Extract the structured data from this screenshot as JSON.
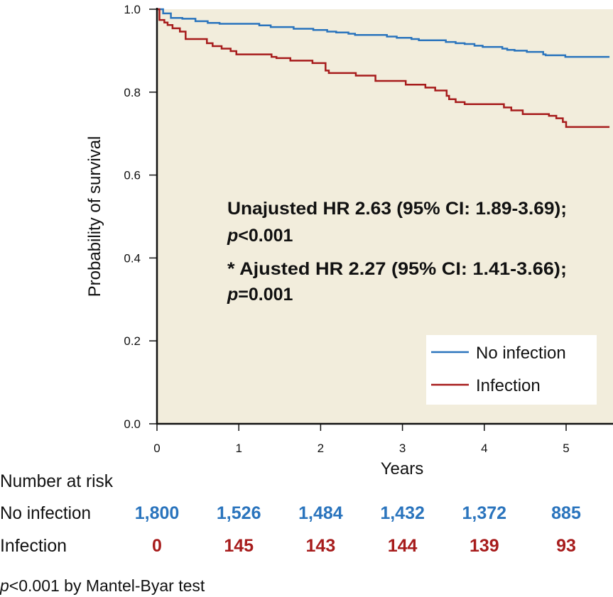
{
  "chart_data": {
    "type": "line",
    "subtype": "kaplan-meier",
    "xlabel": "Years",
    "ylabel": "Probability of survival",
    "xlim": [
      0,
      5.55
    ],
    "ylim": [
      0,
      1.0
    ],
    "x_ticks": [
      "0",
      "1",
      "2",
      "3",
      "4",
      "5"
    ],
    "y_ticks": [
      "0.0",
      "0.2",
      "0.4",
      "0.6",
      "0.8",
      "1.0"
    ],
    "grid": false,
    "legend_position": "bottom-right",
    "series": [
      {
        "name": "No infection",
        "color": "#2a74bd",
        "steps": [
          [
            0,
            1.0
          ],
          [
            0.075,
            0.99
          ],
          [
            0.17,
            0.979
          ],
          [
            0.31,
            0.977
          ],
          [
            0.47,
            0.971
          ],
          [
            0.62,
            0.967
          ],
          [
            0.765,
            0.965
          ],
          [
            1.25,
            0.961
          ],
          [
            1.39,
            0.957
          ],
          [
            1.67,
            0.953
          ],
          [
            1.91,
            0.95
          ],
          [
            2.08,
            0.946
          ],
          [
            2.19,
            0.944
          ],
          [
            2.34,
            0.941
          ],
          [
            2.42,
            0.938
          ],
          [
            2.81,
            0.934
          ],
          [
            2.93,
            0.931
          ],
          [
            3.11,
            0.928
          ],
          [
            3.2,
            0.925
          ],
          [
            3.53,
            0.921
          ],
          [
            3.65,
            0.918
          ],
          [
            3.76,
            0.916
          ],
          [
            3.88,
            0.912
          ],
          [
            3.98,
            0.909
          ],
          [
            4.22,
            0.905
          ],
          [
            4.28,
            0.902
          ],
          [
            4.37,
            0.9
          ],
          [
            4.52,
            0.897
          ],
          [
            4.72,
            0.891
          ],
          [
            4.75,
            0.889
          ],
          [
            4.99,
            0.885
          ],
          [
            5.53,
            0.885
          ]
        ]
      },
      {
        "name": "Infection",
        "color": "#a71c1c",
        "steps": [
          [
            0,
            1.0
          ],
          [
            0.03,
            0.974
          ],
          [
            0.09,
            0.968
          ],
          [
            0.13,
            0.962
          ],
          [
            0.19,
            0.954
          ],
          [
            0.28,
            0.946
          ],
          [
            0.35,
            0.928
          ],
          [
            0.61,
            0.918
          ],
          [
            0.68,
            0.911
          ],
          [
            0.79,
            0.905
          ],
          [
            0.9,
            0.899
          ],
          [
            0.97,
            0.891
          ],
          [
            1.4,
            0.885
          ],
          [
            1.46,
            0.882
          ],
          [
            1.63,
            0.876
          ],
          [
            1.9,
            0.87
          ],
          [
            2.06,
            0.852
          ],
          [
            2.1,
            0.846
          ],
          [
            2.43,
            0.84
          ],
          [
            2.67,
            0.827
          ],
          [
            3.04,
            0.818
          ],
          [
            3.28,
            0.811
          ],
          [
            3.4,
            0.804
          ],
          [
            3.54,
            0.791
          ],
          [
            3.57,
            0.783
          ],
          [
            3.65,
            0.776
          ],
          [
            3.76,
            0.771
          ],
          [
            4.24,
            0.763
          ],
          [
            4.33,
            0.756
          ],
          [
            4.47,
            0.747
          ],
          [
            4.79,
            0.743
          ],
          [
            4.88,
            0.737
          ],
          [
            4.96,
            0.728
          ],
          [
            5.0,
            0.716
          ],
          [
            5.53,
            0.716
          ]
        ]
      }
    ],
    "annotations": {
      "line1": "Unajusted HR 2.63 (95% CI: 1.89-3.69);",
      "line2_p": "p",
      "line2_rest": "<0.001",
      "line3": "* Ajusted HR 2.27 (95% CI: 1.41-3.66);",
      "line4_p": "p",
      "line4_rest": "=0.001"
    },
    "risk_table": {
      "title": "Number at risk",
      "rows": [
        {
          "label": "No infection",
          "color": "#2a74bd",
          "values": [
            "1,800",
            "1,526",
            "1,484",
            "1,432",
            "1,372",
            "885"
          ]
        },
        {
          "label": "Infection",
          "color": "#a71c1c",
          "values": [
            "0",
            "145",
            "143",
            "144",
            "139",
            "93"
          ]
        }
      ]
    },
    "footnote_p": "p",
    "footnote_rest": "<0.001 by Mantel-Byar test"
  }
}
